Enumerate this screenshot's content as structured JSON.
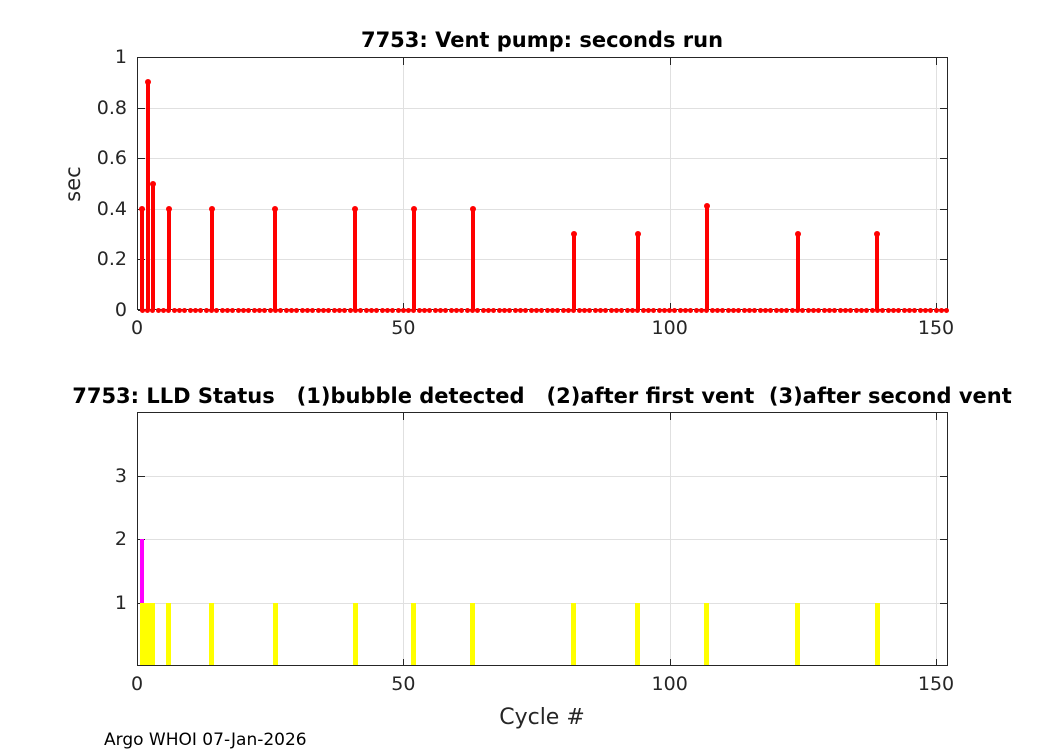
{
  "chart_data": [
    {
      "type": "stem",
      "title": "7753: Vent pump: seconds run",
      "ylabel": "sec",
      "xlabel": "",
      "xlim": [
        0,
        152
      ],
      "ylim": [
        0,
        1
      ],
      "xticks": [
        0,
        50,
        100,
        150
      ],
      "xtick_labels": [
        "0",
        "50",
        "100",
        "150"
      ],
      "yticks": [
        0,
        0.2,
        0.4,
        0.6,
        0.8,
        1
      ],
      "ytick_labels": [
        "0",
        "0.2",
        "0.4",
        "0.6",
        "0.8",
        "1"
      ],
      "grid": true,
      "legend": "none",
      "series": [
        {
          "name": "vent-pump-seconds",
          "color": "#ff0000",
          "x": [
            1,
            2,
            3,
            6,
            14,
            26,
            41,
            52,
            63,
            82,
            94,
            107,
            124,
            139
          ],
          "y": [
            0.4,
            0.9,
            0.5,
            0.4,
            0.4,
            0.4,
            0.4,
            0.4,
            0.4,
            0.3,
            0.3,
            0.41,
            0.3,
            0.3
          ]
        }
      ],
      "zero_marker_cycles": {
        "from": 1,
        "to": 152,
        "value": 0
      }
    },
    {
      "type": "bar",
      "title": "7753: LLD Status   (1)bubble detected   (2)after first vent  (3)after second vent",
      "ylabel": "",
      "xlabel": "Cycle #",
      "xlim": [
        0,
        152
      ],
      "ylim": [
        0,
        4
      ],
      "xticks": [
        0,
        50,
        100,
        150
      ],
      "xtick_labels": [
        "0",
        "50",
        "100",
        "150"
      ],
      "yticks": [
        1,
        2,
        3
      ],
      "ytick_labels": [
        "1",
        "2",
        "3"
      ],
      "grid": true,
      "legend": "none",
      "series": [
        {
          "name": "lld-status-bubble-magenta",
          "color": "#ff00ff",
          "x": [
            1
          ],
          "y": [
            2
          ]
        },
        {
          "name": "lld-status-vent-yellow",
          "color": "#ffff00",
          "x": [
            1,
            2,
            3,
            6,
            14,
            26,
            41,
            52,
            63,
            82,
            94,
            107,
            124,
            139
          ],
          "y": [
            1,
            1,
            1,
            1,
            1,
            1,
            1,
            1,
            1,
            1,
            1,
            1,
            1,
            1
          ]
        }
      ]
    }
  ],
  "footer": "Argo WHOI 07-Jan-2026",
  "colors": {
    "stem_red": "#ff0000",
    "bar_yellow": "#ffff00",
    "bar_magenta": "#ff00ff",
    "axis": "#262626",
    "grid": "#e0e0e0"
  }
}
